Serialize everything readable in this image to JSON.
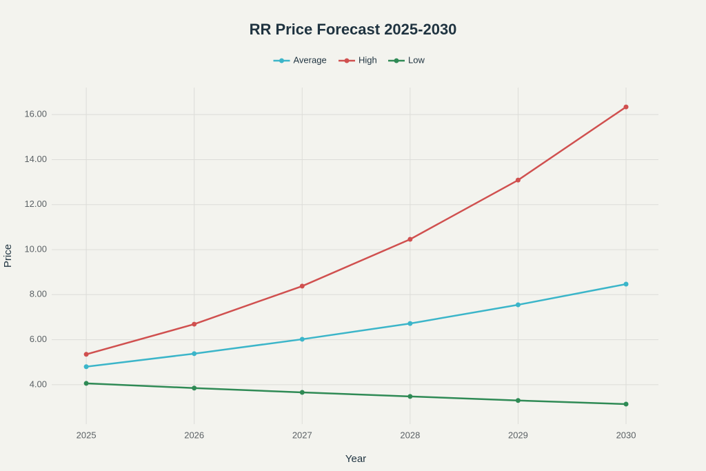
{
  "chart_data": {
    "type": "line",
    "title": "RR Price Forecast 2025-2030",
    "x_label": "Year",
    "y_label": "Price",
    "x": [
      2025,
      2026,
      2027,
      2028,
      2029,
      2030
    ],
    "xlim": [
      2024.68,
      2030.3
    ],
    "xticks": [
      2025,
      2026,
      2027,
      2028,
      2029,
      2030
    ],
    "ylim": [
      2.25,
      17.2
    ],
    "yticks": [
      {
        "value": 4,
        "label": "4.00"
      },
      {
        "value": 6,
        "label": "6.00"
      },
      {
        "value": 8,
        "label": "8.00"
      },
      {
        "value": 10,
        "label": "10.00"
      },
      {
        "value": 12,
        "label": "12.00"
      },
      {
        "value": 14,
        "label": "14.00"
      },
      {
        "value": 16,
        "label": "16.00"
      }
    ],
    "grid": true,
    "series": [
      {
        "name": "Average",
        "color": "#3bb5c9",
        "values": [
          4.8,
          5.38,
          6.02,
          6.72,
          7.55,
          8.47
        ]
      },
      {
        "name": "High",
        "color": "#d0504f",
        "values": [
          5.35,
          6.69,
          8.38,
          10.46,
          13.09,
          16.34
        ]
      },
      {
        "name": "Low",
        "color": "#2f8a55",
        "values": [
          4.06,
          3.85,
          3.66,
          3.48,
          3.3,
          3.14
        ]
      }
    ]
  }
}
